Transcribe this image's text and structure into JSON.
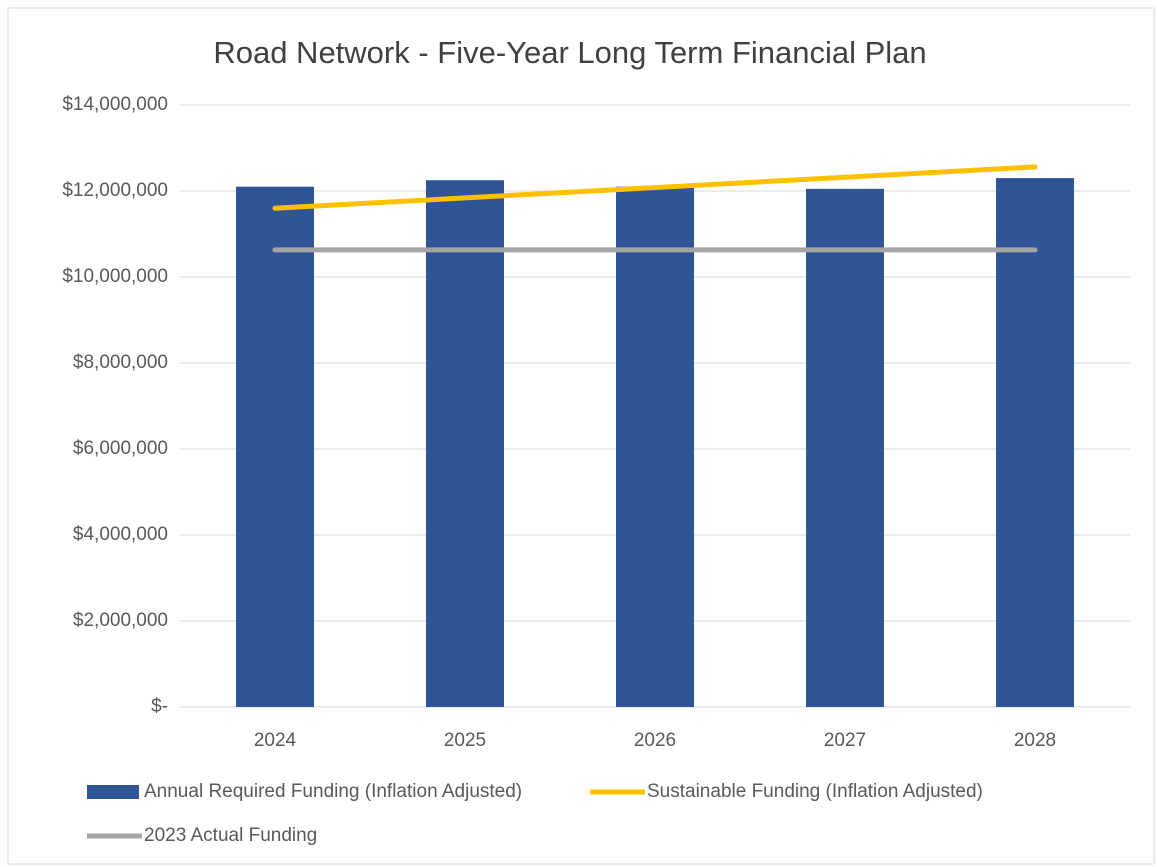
{
  "chart_data": {
    "type": "combo",
    "title": "Road Network - Five-Year Long Term Financial Plan",
    "categories": [
      "2024",
      "2025",
      "2026",
      "2027",
      "2028"
    ],
    "series": [
      {
        "name": "Annual Required Funding (Inflation Adjusted)",
        "type": "bar",
        "color": "#2f5597",
        "values": [
          12100000,
          12250000,
          12100000,
          12050000,
          12300000
        ]
      },
      {
        "name": "Sustainable Funding (Inflation Adjusted)",
        "type": "line",
        "color": "#ffc000",
        "values": [
          11600000,
          11840000,
          12080000,
          12320000,
          12560000
        ]
      },
      {
        "name": "2023 Actual Funding",
        "type": "line",
        "color": "#a5a5a5",
        "values": [
          10630000,
          10630000,
          10630000,
          10630000,
          10630000
        ]
      }
    ],
    "ylim": [
      0,
      14000000
    ],
    "yticks": [
      {
        "value": 0,
        "label": "$-"
      },
      {
        "value": 2000000,
        "label": "$2,000,000"
      },
      {
        "value": 4000000,
        "label": "$4,000,000"
      },
      {
        "value": 6000000,
        "label": "$6,000,000"
      },
      {
        "value": 8000000,
        "label": "$8,000,000"
      },
      {
        "value": 10000000,
        "label": "$10,000,000"
      },
      {
        "value": 12000000,
        "label": "$12,000,000"
      },
      {
        "value": 14000000,
        "label": "$14,000,000"
      }
    ],
    "grid": true
  }
}
